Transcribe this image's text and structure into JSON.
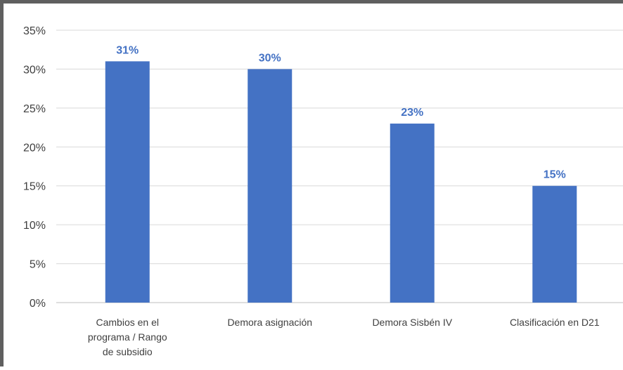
{
  "chart_data": {
    "type": "bar",
    "categories": [
      "Cambios en el programa / Rango de subsidio",
      "Demora asignación",
      "Demora Sisbén IV",
      "Clasificación en D21"
    ],
    "category_label_lines": [
      [
        "Cambios en el",
        "programa / Rango",
        "de subsidio"
      ],
      [
        "Demora asignación"
      ],
      [
        "Demora Sisbén IV"
      ],
      [
        "Clasificación en D21"
      ]
    ],
    "values": [
      31,
      30,
      23,
      15
    ],
    "data_labels": [
      "31%",
      "30%",
      "23%",
      "15%"
    ],
    "yticks": [
      0,
      5,
      10,
      15,
      20,
      25,
      30,
      35
    ],
    "ytick_labels": [
      "0%",
      "5%",
      "10%",
      "15%",
      "20%",
      "25%",
      "30%",
      "35%"
    ],
    "ylim": [
      0,
      35
    ],
    "grid": true,
    "legend": "none",
    "title": "",
    "xlabel": "",
    "ylabel": "",
    "colors": {
      "bar": "#4472C4",
      "data_label": "#4472C4",
      "grid": "#D9D9D9",
      "axis_line": "#BFBFBF",
      "frame": "#5F5F5F"
    }
  }
}
